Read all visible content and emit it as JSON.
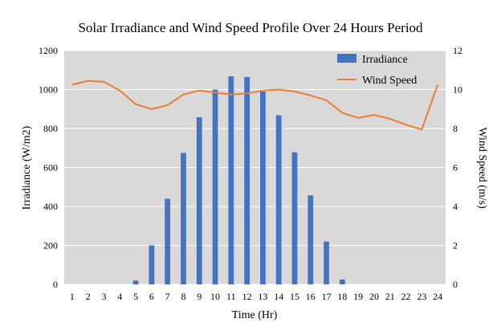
{
  "chart_data": {
    "type": "bar+line",
    "title": "Solar Irradiance and Wind Speed Profile Over 24 Hours Period",
    "xlabel": "Time (Hr)",
    "ylabel_left": "Irradiance (W/m2)",
    "ylabel_right": "Wind Speed (m/s)",
    "categories": [
      "1",
      "2",
      "3",
      "4",
      "5",
      "6",
      "7",
      "8",
      "9",
      "10",
      "11",
      "12",
      "13",
      "14",
      "15",
      "16",
      "17",
      "18",
      "19",
      "20",
      "21",
      "22",
      "23",
      "24"
    ],
    "y_left": {
      "min": 0,
      "max": 1200,
      "step": 200,
      "ticks": [
        "0",
        "200",
        "400",
        "600",
        "800",
        "1000",
        "1200"
      ]
    },
    "y_right": {
      "min": 0,
      "max": 12,
      "step": 2,
      "ticks": [
        "0",
        "2",
        "4",
        "6",
        "8",
        "10",
        "12"
      ]
    },
    "grid": true,
    "legend_position": "top-right",
    "series": [
      {
        "name": "Irradiance",
        "kind": "bar",
        "axis": "left",
        "color": "#4472C4",
        "values": [
          0,
          0,
          0,
          0,
          20,
          200,
          440,
          675,
          858,
          1000,
          1068,
          1065,
          990,
          868,
          678,
          457,
          220,
          25,
          0,
          0,
          0,
          0,
          0,
          0
        ]
      },
      {
        "name": "Wind Speed",
        "kind": "line",
        "axis": "right",
        "color": "#ED7D31",
        "values": [
          10.25,
          10.45,
          10.4,
          9.95,
          9.25,
          9.0,
          9.2,
          9.75,
          9.95,
          9.85,
          9.75,
          9.8,
          9.95,
          10.0,
          9.9,
          9.7,
          9.45,
          8.8,
          8.55,
          8.7,
          8.5,
          8.2,
          7.95,
          10.25
        ]
      }
    ]
  },
  "colors": {
    "plot_background": "#D9D9D9",
    "grid": "#FFFFFF",
    "bar": "#4472C4",
    "line": "#ED7D31"
  }
}
